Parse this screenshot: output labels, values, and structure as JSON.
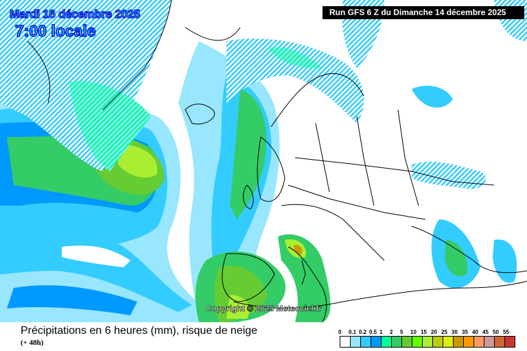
{
  "header": {
    "date": "Mardi 16 décembre 2025",
    "time": "7:00 locale",
    "run": "Run GFS 6 Z du Dimanche 14 décembre 2025"
  },
  "copyright": "Copyright © 2025 Meteociel.fr",
  "footer": {
    "title": "Précipitations en 6 heures (mm), risque de neige",
    "lead": "(+ 48h)"
  },
  "legend": {
    "labels": [
      "0",
      "0.1",
      "0.2",
      "0.5",
      "1",
      "2",
      "5",
      "10",
      "15",
      "20",
      "25",
      "30",
      "35",
      "40",
      "45",
      "50",
      "55"
    ],
    "colors": [
      "#ffffff",
      "#99e6ff",
      "#33ccff",
      "#0099ff",
      "#00ff99",
      "#33cc66",
      "#66cc33",
      "#66ff00",
      "#aaee33",
      "#bbcc11",
      "#ddee11",
      "#cc9900",
      "#ff9900",
      "#ff9966",
      "#cc9999",
      "#cc6633",
      "#cc3333"
    ]
  }
}
